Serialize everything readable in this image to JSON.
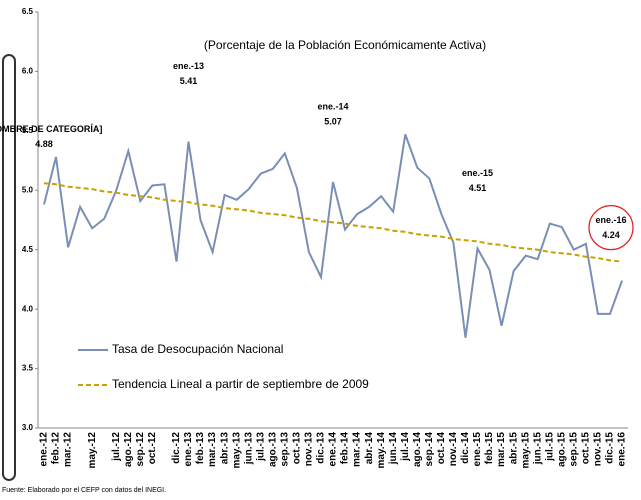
{
  "chart_data": {
    "type": "line",
    "subtitle": "(Porcentaje de la Población Económicamente Activa)",
    "source": "Fuente: Elaborado por el CEFP con datos del INEGI.",
    "categories": [
      "ene.-12",
      "feb.-12",
      "mar.-12",
      null,
      "may.-12",
      null,
      "jul.-12",
      "ago.-12",
      "sep.-12",
      "oct.-12",
      null,
      "dic.-12",
      "ene.-13",
      "feb.-13",
      "mar.-13",
      "abr.-13",
      "may.-13",
      "jun.-13",
      "jul.-13",
      "ago.-13",
      "sep.-13",
      "oct.-13",
      "nov.-13",
      "dic.-13",
      "ene.-14",
      "feb.-14",
      "mar.-14",
      "abr.-14",
      "may.-14",
      "jun.-14",
      "jul.-14",
      "ago.-14",
      "sep.-14",
      "oct.-14",
      "nov.-14",
      "dic.-14",
      "ene.-15",
      "feb.-15",
      "mar.-15",
      "abr.-15",
      "may.-15",
      "jun.-15",
      "jul.-15",
      "ago.-15",
      "sep.-15",
      "oct.-15",
      "nov.-15",
      "dic.-15",
      "ene.-16"
    ],
    "series": [
      {
        "name": "Tasa de Desocupación Nacional",
        "color": "#7a8fb5",
        "dash": false,
        "values": [
          4.88,
          5.28,
          4.52,
          4.86,
          4.68,
          4.76,
          5.0,
          5.33,
          4.91,
          5.04,
          5.05,
          4.4,
          5.41,
          4.75,
          4.48,
          4.96,
          4.92,
          5.01,
          5.14,
          5.18,
          5.31,
          5.02,
          4.48,
          4.27,
          5.07,
          4.67,
          4.8,
          4.86,
          4.95,
          4.82,
          5.47,
          5.19,
          5.1,
          4.8,
          4.56,
          3.76,
          4.51,
          4.33,
          3.86,
          4.32,
          4.45,
          4.42,
          4.72,
          4.69,
          4.5,
          4.55,
          3.96,
          3.96,
          4.24
        ]
      },
      {
        "name": "Tendencia Lineal a partir de septiembre de 2009",
        "color": "#c8a000",
        "dash": true,
        "values": [
          5.06,
          5.05,
          5.03,
          5.02,
          5.01,
          4.99,
          4.98,
          4.96,
          4.95,
          4.94,
          4.92,
          4.91,
          4.9,
          4.88,
          4.87,
          4.85,
          4.84,
          4.83,
          4.81,
          4.8,
          4.79,
          4.77,
          4.76,
          4.74,
          4.73,
          4.72,
          4.7,
          4.69,
          4.68,
          4.66,
          4.65,
          4.63,
          4.62,
          4.61,
          4.59,
          4.58,
          4.57,
          4.55,
          4.54,
          4.52,
          4.51,
          4.5,
          4.48,
          4.47,
          4.46,
          4.44,
          4.43,
          4.41,
          4.4
        ]
      }
    ],
    "annotations": [
      {
        "label": "[NOMBRE DE CATEGORÍA]",
        "value": 4.88
      },
      {
        "label": "ene.-13",
        "value": 5.41
      },
      {
        "label": "ene.-14",
        "value": 5.07
      },
      {
        "label": "ene.-15",
        "value": 4.51
      },
      {
        "label": "ene.-16",
        "value": 4.24
      }
    ],
    "ylim": [
      3.0,
      6.5
    ],
    "yticks": [
      {
        "value": 3,
        "label": "3.0"
      },
      3.5,
      {
        "value": 4,
        "label": "4.0"
      },
      4.5,
      {
        "value": 5,
        "label": "5.0"
      },
      5.5,
      {
        "value": 6,
        "label": "6.0"
      },
      6.5
    ],
    "grid": false
  }
}
